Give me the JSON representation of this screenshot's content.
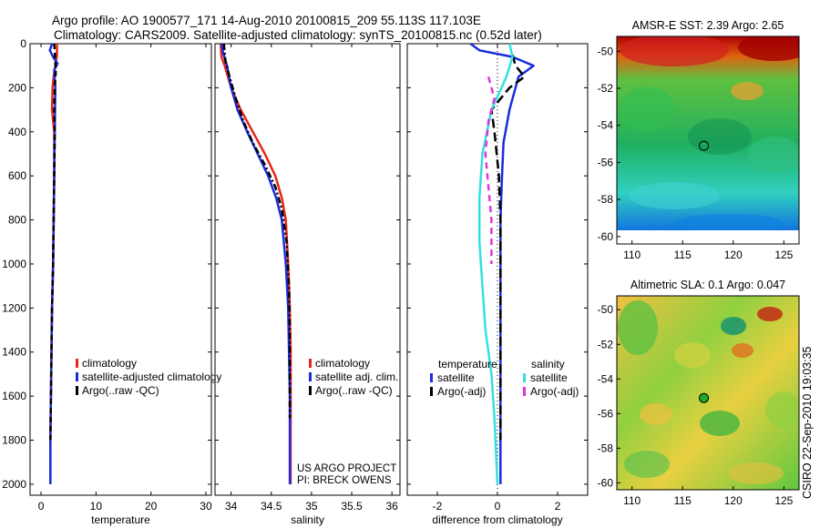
{
  "header": {
    "line1": "Argo profile: AO 1900577_171 14-Aug-2010 20100815_209 55.113S 117.103E",
    "line2": "Climatology: CARS2009. Satellite-adjusted climatology: synTS_20100815.nc (0.52d later)"
  },
  "watermark": "CSIRO 22-Sep-2010 19:03:35",
  "colors": {
    "clim": "#e8261c",
    "sat": "#1a2ddb",
    "argo": "#000000",
    "sal_sat": "#33e0e0",
    "sal_argo": "#e033e0"
  },
  "chart_data": [
    {
      "type": "line",
      "title": "",
      "xlabel": "temperature",
      "ylabel": "",
      "xlim": [
        -2,
        31
      ],
      "ylim": [
        2050,
        0
      ],
      "xticks": [
        "0",
        "10",
        "20",
        "30"
      ],
      "xtick_values": [
        0,
        10,
        20,
        30
      ],
      "yticks": [
        "0",
        "200",
        "400",
        "600",
        "800",
        "1000",
        "1200",
        "1400",
        "1600",
        "1800",
        "2000"
      ],
      "ytick_values": [
        0,
        200,
        400,
        600,
        800,
        1000,
        1200,
        1400,
        1600,
        1800,
        2000
      ],
      "legend": [
        "climatology",
        "satellite-adjusted climatology",
        "Argo(..raw -QC)"
      ],
      "series": [
        {
          "name": "climatology",
          "color": "clim",
          "dash": "",
          "x": [
            2.9,
            2.9,
            2.6,
            2.3,
            2.1,
            2.0,
            2.2,
            2.4,
            2.4,
            2.3,
            2.2,
            2.0,
            1.9,
            1.8,
            1.7,
            1.7
          ],
          "y": [
            0,
            50,
            100,
            150,
            200,
            300,
            350,
            400,
            600,
            800,
            1000,
            1200,
            1400,
            1600,
            1800,
            2000
          ]
        },
        {
          "name": "satellite-adjusted climatology",
          "color": "sat",
          "dash": "",
          "x": [
            2.0,
            1.6,
            2.2,
            3.0,
            2.4,
            2.6,
            2.5,
            2.4,
            2.3,
            2.2,
            2.0,
            1.9,
            1.8,
            1.7,
            1.7
          ],
          "y": [
            0,
            30,
            60,
            90,
            120,
            200,
            400,
            600,
            800,
            1000,
            1200,
            1400,
            1600,
            1800,
            2000
          ]
        },
        {
          "name": "Argo(..raw -QC)",
          "color": "argo",
          "dash": "6 4",
          "x": [
            2.4,
            2.5,
            2.6,
            2.7,
            2.5,
            2.4,
            2.5,
            2.4,
            2.3,
            2.2,
            2.0,
            1.9,
            1.8,
            1.7
          ],
          "y": [
            0,
            40,
            80,
            120,
            200,
            300,
            400,
            600,
            800,
            1000,
            1200,
            1400,
            1600,
            1800
          ]
        }
      ]
    },
    {
      "type": "line",
      "title": "",
      "xlabel": "salinity",
      "ylabel": "",
      "xlim": [
        33.8,
        36.1
      ],
      "ylim": [
        2050,
        0
      ],
      "xticks": [
        "34",
        "34.5",
        "35",
        "35.5",
        "36"
      ],
      "xtick_values": [
        34,
        34.5,
        35,
        35.5,
        36
      ],
      "legend": [
        "climatology",
        "satellite adj. clim.",
        "Argo(..raw -QC)"
      ],
      "annotations": [
        "US ARGO PROJECT",
        "PI: BRECK OWENS"
      ],
      "series": [
        {
          "name": "climatology",
          "color": "clim",
          "dash": "",
          "x": [
            33.87,
            33.88,
            33.92,
            34.0,
            34.12,
            34.27,
            34.42,
            34.55,
            34.63,
            34.68,
            34.71,
            34.73,
            34.74,
            34.74,
            34.74,
            34.74
          ],
          "y": [
            0,
            60,
            100,
            200,
            300,
            400,
            500,
            600,
            700,
            800,
            1000,
            1200,
            1400,
            1600,
            1800,
            2000
          ]
        },
        {
          "name": "satellite adj. clim.",
          "color": "sat",
          "dash": "",
          "x": [
            33.88,
            33.9,
            33.95,
            34.0,
            34.08,
            34.2,
            34.33,
            34.46,
            34.56,
            34.63,
            34.68,
            34.71,
            34.72,
            34.73,
            34.73,
            34.73
          ],
          "y": [
            0,
            40,
            100,
            200,
            300,
            400,
            500,
            600,
            700,
            800,
            1000,
            1200,
            1400,
            1600,
            1800,
            2000
          ]
        },
        {
          "name": "Argo(..raw -QC)",
          "color": "argo",
          "dash": "7 3 2 3",
          "x": [
            33.91,
            33.93,
            33.98,
            34.06,
            34.15,
            34.27,
            34.42,
            34.55,
            34.63,
            34.69,
            34.72,
            34.73,
            34.73,
            34.73
          ],
          "y": [
            0,
            80,
            150,
            250,
            350,
            450,
            550,
            650,
            750,
            900,
            1100,
            1300,
            1500,
            1700
          ]
        }
      ]
    },
    {
      "type": "line",
      "title": "",
      "xlabel": "difference from climatology",
      "ylabel": "",
      "xlim": [
        -3,
        3
      ],
      "ylim": [
        2050,
        0
      ],
      "xticks": [
        "-2",
        "0",
        "2"
      ],
      "xtick_values": [
        -2,
        0,
        2
      ],
      "legend_left_title": "temperature",
      "legend_right_title": "salinity",
      "legend": [
        "satellite",
        "Argo(-adj)",
        "satellite",
        "Argo(-adj)"
      ],
      "series": [
        {
          "name": "temperature satellite",
          "color": "sat",
          "dash": "",
          "x": [
            -0.9,
            -0.6,
            0.5,
            1.2,
            0.7,
            0.4,
            0.2,
            0.15,
            0.1,
            0.1,
            0.1,
            0.1,
            0.1,
            0.1
          ],
          "y": [
            0,
            30,
            60,
            100,
            150,
            300,
            450,
            600,
            800,
            1000,
            1200,
            1400,
            1700,
            2000
          ]
        },
        {
          "name": "temperature Argo(-adj)",
          "color": "argo",
          "dash": "10 5",
          "x": [
            0.5,
            0.6,
            0.9,
            0.4,
            -0.2,
            -0.1,
            0.05,
            0.1,
            0.1,
            0.1,
            0.1,
            0.1
          ],
          "y": [
            50,
            100,
            150,
            200,
            300,
            400,
            600,
            800,
            1000,
            1200,
            1400,
            1800
          ]
        },
        {
          "name": "salinity satellite",
          "color": "sal_sat",
          "dash": "",
          "x": [
            0.4,
            0.5,
            0.3,
            -0.2,
            -0.5,
            -0.6,
            -0.6,
            -0.5,
            -0.4,
            -0.2,
            -0.1,
            0.0
          ],
          "y": [
            0,
            60,
            150,
            300,
            500,
            700,
            900,
            1100,
            1300,
            1500,
            1700,
            2000
          ]
        },
        {
          "name": "salinity Argo(-adj)",
          "color": "sal_argo",
          "dash": "7 5",
          "x": [
            -0.3,
            -0.2,
            -0.1,
            -0.3,
            -0.4,
            -0.3,
            -0.2,
            -0.2,
            -0.2
          ],
          "y": [
            150,
            200,
            250,
            350,
            500,
            650,
            800,
            900,
            1000
          ]
        }
      ]
    },
    {
      "type": "heatmap",
      "title": "AMSR-E SST: 2.39 Argo: 2.65",
      "xlim": [
        108.5,
        126.5
      ],
      "ylim": [
        -60.4,
        -49.2
      ],
      "xticks": [
        "110",
        "115",
        "120",
        "125"
      ],
      "xtick_values": [
        110,
        115,
        120,
        125
      ],
      "yticks": [
        "-50",
        "-52",
        "-54",
        "-56",
        "-58",
        "-60"
      ],
      "ytick_values": [
        -50,
        -52,
        -54,
        -56,
        -58,
        -60
      ],
      "marker": {
        "lon": 117.1,
        "lat": -55.1,
        "fill": "none"
      }
    },
    {
      "type": "heatmap",
      "title": "Altimetric SLA: 0.1 Argo: 0.047",
      "xlim": [
        108.5,
        126.5
      ],
      "ylim": [
        -60.4,
        -49.2
      ],
      "xticks": [
        "110",
        "115",
        "120",
        "125"
      ],
      "xtick_values": [
        110,
        115,
        120,
        125
      ],
      "yticks": [
        "-50",
        "-52",
        "-54",
        "-56",
        "-58",
        "-60"
      ],
      "ytick_values": [
        -50,
        -52,
        -54,
        -56,
        -58,
        -60
      ],
      "marker": {
        "lon": 117.1,
        "lat": -55.1,
        "fill": "#1eaa2a"
      }
    }
  ]
}
